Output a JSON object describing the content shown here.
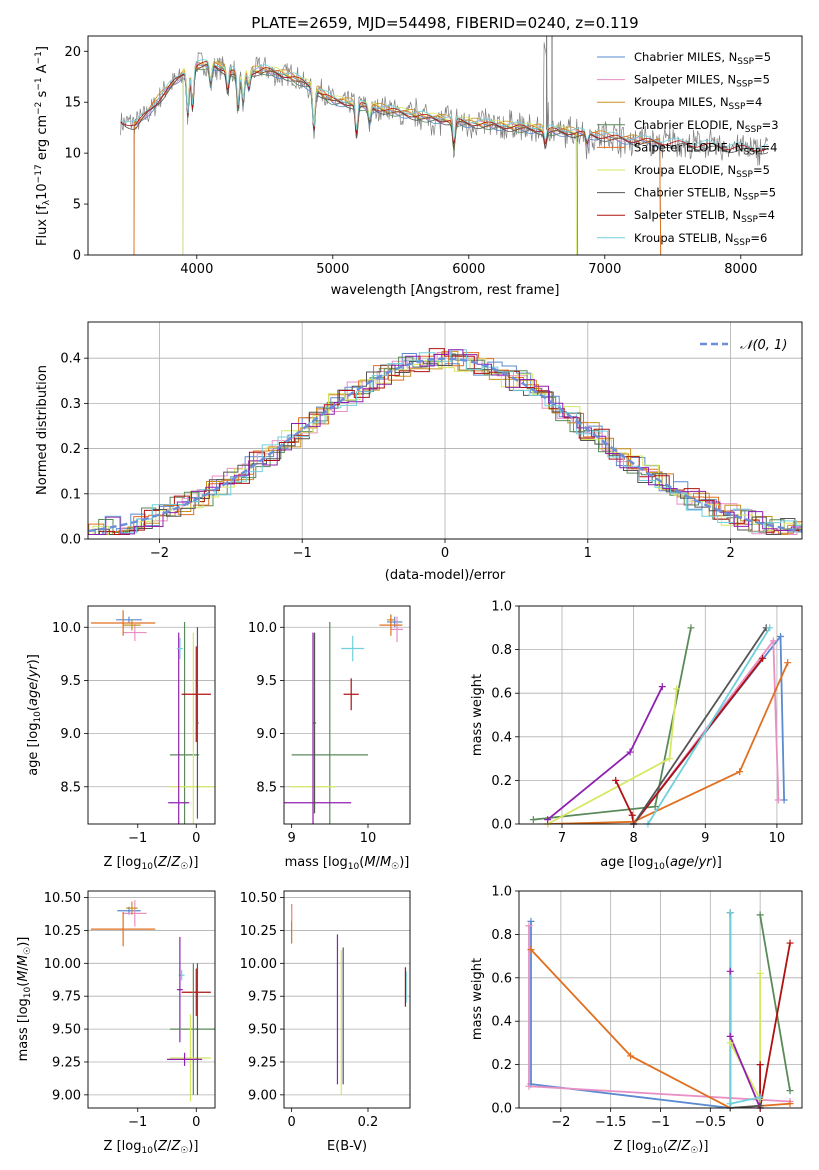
{
  "title": "PLATE=2659, MJD=54498, FIBERID=0240, z=0.119",
  "colors": {
    "Chabrier MILES": "#5a8ad0",
    "Salpeter MILES": "#e88fc4",
    "Kroupa MILES": "#c79020",
    "Chabrier ELODIE": "#5a8a5a",
    "Salpeter ELODIE": "#e07020",
    "Kroupa ELODIE": "#d6e860",
    "Chabrier STELIB": "#555555",
    "Salpeter STELIB": "#b01010",
    "Kroupa STELIB": "#70d0dc",
    "extra": "#9020b0",
    "data": "#808080"
  },
  "chart_data": [
    {
      "id": "spectrum",
      "type": "line",
      "title": "PLATE=2659, MJD=54498, FIBERID=0240, z=0.119",
      "xlabel": "wavelength [Angstrom, rest frame]",
      "ylabel": "Flux [fλ10⁻¹⁷ erg cm⁻² s⁻¹ A⁻¹]",
      "xlim": [
        3200,
        8450
      ],
      "ylim": [
        0,
        21.5
      ],
      "xticks": [
        4000,
        5000,
        6000,
        7000,
        8000
      ],
      "yticks": [
        0,
        5,
        10,
        15,
        20
      ],
      "legend_loc": "upper right",
      "continuum": [
        [
          3440,
          13.2
        ],
        [
          3550,
          12.7
        ],
        [
          3800,
          16.5
        ],
        [
          3950,
          18.5
        ],
        [
          4100,
          18.8
        ],
        [
          4300,
          17.8
        ],
        [
          4500,
          18.2
        ],
        [
          4700,
          17.5
        ],
        [
          4850,
          16.5
        ],
        [
          5000,
          15.2
        ],
        [
          5300,
          14.5
        ],
        [
          5700,
          13.5
        ],
        [
          6000,
          13.0
        ],
        [
          6400,
          12.5
        ],
        [
          6800,
          12.0
        ],
        [
          7200,
          11.3
        ],
        [
          7600,
          10.9
        ],
        [
          8000,
          10.5
        ],
        [
          8200,
          10.4
        ]
      ],
      "series": [
        {
          "name": "Chabrier MILES, N_SSP=5"
        },
        {
          "name": "Salpeter MILES, N_SSP=5"
        },
        {
          "name": "Kroupa MILES, N_SSP=4"
        },
        {
          "name": "Chabrier ELODIE, N_SSP=3"
        },
        {
          "name": "Salpeter ELODIE, N_SSP=4"
        },
        {
          "name": "Kroupa ELODIE, N_SSP=5"
        },
        {
          "name": "Chabrier STELIB, N_SSP=5"
        },
        {
          "name": "Salpeter STELIB, N_SSP=4"
        },
        {
          "name": "Kroupa STELIB, N_SSP=6"
        }
      ]
    },
    {
      "id": "residuals",
      "type": "histogram",
      "xlabel": "(data-model)/error",
      "ylabel": "Normed distribution",
      "xlim": [
        -2.5,
        2.5
      ],
      "ylim": [
        0,
        0.48
      ],
      "xticks": [
        -2,
        -1,
        0,
        1,
        2
      ],
      "yticks": [
        0.0,
        0.1,
        0.2,
        0.3,
        0.4
      ],
      "grid": true,
      "legend": "𝒩(0, 1)",
      "legend_loc": "upper right"
    },
    {
      "id": "age_vs_Z",
      "type": "errorbar",
      "xlabel": "Z [log10(Z/Z☉)]",
      "ylabel": "age [log10(age/yr)]",
      "xlim": [
        -1.85,
        0.32
      ],
      "ylim": [
        8.15,
        10.2
      ],
      "xticks": [
        -1,
        0
      ],
      "yticks": [
        8.5,
        9.0,
        9.5,
        10.0
      ],
      "points": [
        {
          "c": "#5a8ad0",
          "x": -1.15,
          "y": 10.07,
          "xe": 0.22,
          "ye": 0.03
        },
        {
          "c": "#e88fc4",
          "x": -1.05,
          "y": 9.95,
          "xe": 0.2,
          "ye": 0.08
        },
        {
          "c": "#c79020",
          "x": -1.1,
          "y": 10.02,
          "xe": 0.15,
          "ye": 0.05
        },
        {
          "c": "#e07020",
          "x": -1.25,
          "y": 10.04,
          "xe": 0.55,
          "ye": 0.12
        },
        {
          "c": "#5a8a5a",
          "x": -0.2,
          "y": 8.8,
          "xe": 0.25,
          "ye": 1.25
        },
        {
          "c": "#d6e860",
          "x": -0.05,
          "y": 8.5,
          "xe": 0.4,
          "ye": 1.45
        },
        {
          "c": "#9020b0",
          "x": -0.3,
          "y": 8.35,
          "xe": 0.18,
          "ye": 1.6
        },
        {
          "c": "#70d0dc",
          "x": -0.28,
          "y": 9.8,
          "xe": 0.05,
          "ye": 0.1
        },
        {
          "c": "#b01010",
          "x": 0.0,
          "y": 9.37,
          "xe": 0.25,
          "ye": 0.45
        },
        {
          "c": "#555555",
          "x": 0.02,
          "y": 9.1,
          "xe": 0.02,
          "ye": 0.9
        }
      ]
    },
    {
      "id": "age_vs_mass",
      "type": "errorbar",
      "xlabel": "mass [log10(M/M☉)]",
      "ylabel": "",
      "xlim": [
        8.9,
        10.55
      ],
      "ylim": [
        8.15,
        10.2
      ],
      "xticks": [
        9,
        10
      ],
      "yticks": [
        8.5,
        9.0,
        9.5,
        10.0
      ],
      "points": [
        {
          "c": "#5a8ad0",
          "x": 10.35,
          "y": 10.05,
          "xe": 0.1,
          "ye": 0.05
        },
        {
          "c": "#e88fc4",
          "x": 10.38,
          "y": 9.98,
          "xe": 0.08,
          "ye": 0.12
        },
        {
          "c": "#c79020",
          "x": 10.3,
          "y": 10.07,
          "xe": 0.05,
          "ye": 0.05
        },
        {
          "c": "#e07020",
          "x": 10.3,
          "y": 10.02,
          "xe": 0.15,
          "ye": 0.1
        },
        {
          "c": "#70d0dc",
          "x": 9.8,
          "y": 9.8,
          "xe": 0.15,
          "ye": 0.12
        },
        {
          "c": "#b01010",
          "x": 9.78,
          "y": 9.37,
          "xe": 0.1,
          "ye": 0.15
        },
        {
          "c": "#5a8a5a",
          "x": 9.5,
          "y": 8.8,
          "xe": 0.5,
          "ye": 1.25
        },
        {
          "c": "#d6e860",
          "x": 9.28,
          "y": 8.5,
          "xe": 0.3,
          "ye": 1.45
        },
        {
          "c": "#9020b0",
          "x": 9.28,
          "y": 8.35,
          "xe": 0.5,
          "ye": 1.6
        },
        {
          "c": "#555555",
          "x": 9.3,
          "y": 9.1,
          "xe": 0.02,
          "ye": 0.85
        }
      ]
    },
    {
      "id": "weight_vs_age",
      "type": "line",
      "xlabel": "age [log10(age/yr)]",
      "ylabel": "mass weight",
      "xlim": [
        6.4,
        10.35
      ],
      "ylim": [
        0,
        1.0
      ],
      "xticks": [
        7,
        8,
        9,
        10
      ],
      "yticks": [
        0.0,
        0.2,
        0.4,
        0.6,
        0.8,
        1.0
      ],
      "grid": true,
      "series": [
        {
          "c": "#5a8ad0",
          "pts": [
            [
              8.0,
              0.0
            ],
            [
              10.05,
              0.86
            ],
            [
              10.1,
              0.11
            ]
          ]
        },
        {
          "c": "#e88fc4",
          "pts": [
            [
              8.0,
              0.0
            ],
            [
              9.95,
              0.84
            ],
            [
              10.02,
              0.11
            ]
          ]
        },
        {
          "c": "#e07020",
          "pts": [
            [
              6.8,
              0.0
            ],
            [
              8.0,
              0.01
            ],
            [
              9.48,
              0.24
            ],
            [
              10.15,
              0.74
            ]
          ]
        },
        {
          "c": "#5a8a5a",
          "pts": [
            [
              6.6,
              0.02
            ],
            [
              8.3,
              0.08
            ],
            [
              8.8,
              0.9
            ]
          ]
        },
        {
          "c": "#d6e860",
          "pts": [
            [
              6.8,
              0.0
            ],
            [
              8.5,
              0.3
            ],
            [
              8.6,
              0.62
            ]
          ]
        },
        {
          "c": "#9020b0",
          "pts": [
            [
              6.8,
              0.02
            ],
            [
              7.95,
              0.33
            ],
            [
              8.4,
              0.63
            ]
          ]
        },
        {
          "c": "#b01010",
          "pts": [
            [
              7.75,
              0.2
            ],
            [
              7.98,
              0.04
            ],
            [
              8.0,
              0.0
            ],
            [
              9.8,
              0.76
            ]
          ]
        },
        {
          "c": "#555555",
          "pts": [
            [
              8.0,
              0.0
            ],
            [
              9.85,
              0.9
            ]
          ]
        },
        {
          "c": "#70d0dc",
          "pts": [
            [
              8.2,
              0.0
            ],
            [
              9.9,
              0.9
            ]
          ]
        }
      ]
    },
    {
      "id": "mass_vs_Z",
      "type": "errorbar",
      "xlabel": "Z [log10(Z/Z☉)]",
      "ylabel": "mass [log10(M/M☉)]",
      "xlim": [
        -1.85,
        0.32
      ],
      "ylim": [
        8.9,
        10.55
      ],
      "xticks": [
        -1,
        0
      ],
      "yticks": [
        9.0,
        9.25,
        9.5,
        9.75,
        10.0,
        10.25,
        10.5
      ],
      "points": [
        {
          "c": "#5a8ad0",
          "x": -1.15,
          "y": 10.4,
          "xe": 0.2,
          "ye": 0.03
        },
        {
          "c": "#e88fc4",
          "x": -1.05,
          "y": 10.38,
          "xe": 0.2,
          "ye": 0.1
        },
        {
          "c": "#c79020",
          "x": -1.1,
          "y": 10.42,
          "xe": 0.1,
          "ye": 0.05
        },
        {
          "c": "#e07020",
          "x": -1.25,
          "y": 10.26,
          "xe": 0.55,
          "ye": 0.13
        },
        {
          "c": "#70d0dc",
          "x": -0.25,
          "y": 9.91,
          "xe": 0.05,
          "ye": 0.04
        },
        {
          "c": "#9020b0",
          "x": -0.28,
          "y": 9.8,
          "xe": 0.05,
          "ye": 0.4
        },
        {
          "c": "#b01010",
          "x": 0.0,
          "y": 9.78,
          "xe": 0.25,
          "ye": 0.18
        },
        {
          "c": "#5a8a5a",
          "x": -0.05,
          "y": 9.5,
          "xe": 0.4,
          "ye": 0.5
        },
        {
          "c": "#d6e860",
          "x": -0.1,
          "y": 9.28,
          "xe": 0.35,
          "ye": 0.33
        },
        {
          "c": "#9020b0",
          "x": -0.2,
          "y": 9.27,
          "xe": 0.3,
          "ye": 0.05
        },
        {
          "c": "#555555",
          "x": 0.02,
          "y": 9.5,
          "xe": 0.02,
          "ye": 0.5
        }
      ]
    },
    {
      "id": "mass_vs_ebv",
      "type": "errorbar",
      "xlabel": "E(B-V)",
      "ylabel": "",
      "xlim": [
        -0.02,
        0.31
      ],
      "ylim": [
        8.9,
        10.55
      ],
      "xticks": [
        0.0,
        0.2
      ],
      "yticks": [
        9.0,
        9.25,
        9.5,
        9.75,
        10.0,
        10.25,
        10.5
      ],
      "points": [
        {
          "c": "#e07020",
          "x": 0.0,
          "y": 10.3,
          "xe": 0.0,
          "ye": 0.15
        },
        {
          "c": "#e88fc4",
          "x": 0.0,
          "y": 10.38,
          "xe": 0.0,
          "ye": 0.06
        },
        {
          "c": "#9020b0",
          "x": 0.12,
          "y": 9.65,
          "xe": 0.0,
          "ye": 0.57
        },
        {
          "c": "#d6e860",
          "x": 0.13,
          "y": 9.55,
          "xe": 0.0,
          "ye": 0.55
        },
        {
          "c": "#555555",
          "x": 0.135,
          "y": 9.6,
          "xe": 0.0,
          "ye": 0.52
        },
        {
          "c": "#70d0dc",
          "x": 0.3,
          "y": 9.82,
          "xe": 0.0,
          "ye": 0.12
        },
        {
          "c": "#b01010",
          "x": 0.298,
          "y": 9.82,
          "xe": 0.0,
          "ye": 0.15
        }
      ]
    },
    {
      "id": "weight_vs_Z",
      "type": "line",
      "xlabel": "Z [log10(Z/Z☉)]",
      "ylabel": "mass weight",
      "xlim": [
        -2.42,
        0.42
      ],
      "ylim": [
        0,
        1.0
      ],
      "xticks": [
        -2.0,
        -1.5,
        -1.0,
        -0.5,
        0.0
      ],
      "yticks": [
        0.0,
        0.2,
        0.4,
        0.6,
        0.8,
        1.0
      ],
      "grid": true,
      "series": [
        {
          "c": "#5a8ad0",
          "pts": [
            [
              -2.3,
              0.86
            ],
            [
              -2.3,
              0.11
            ],
            [
              -0.3,
              0.0
            ]
          ]
        },
        {
          "c": "#e88fc4",
          "pts": [
            [
              -2.32,
              0.84
            ],
            [
              -2.32,
              0.1
            ],
            [
              0.3,
              0.03
            ]
          ]
        },
        {
          "c": "#e07020",
          "pts": [
            [
              -2.3,
              0.73
            ],
            [
              -1.3,
              0.24
            ],
            [
              -0.3,
              0.0
            ],
            [
              0.3,
              0.02
            ]
          ]
        },
        {
          "c": "#5a8a5a",
          "pts": [
            [
              0.0,
              0.89
            ],
            [
              0.3,
              0.08
            ]
          ]
        },
        {
          "c": "#d6e860",
          "pts": [
            [
              -0.3,
              0.3
            ],
            [
              0.0,
              0.04
            ],
            [
              0.0,
              0.62
            ]
          ]
        },
        {
          "c": "#9020b0",
          "pts": [
            [
              -0.3,
              0.63
            ],
            [
              -0.3,
              0.33
            ],
            [
              0.0,
              0.0
            ]
          ]
        },
        {
          "c": "#b01010",
          "pts": [
            [
              0.0,
              0.2
            ],
            [
              0.0,
              0.0
            ],
            [
              0.3,
              0.76
            ]
          ]
        },
        {
          "c": "#555555",
          "pts": [
            [
              -0.3,
              0.9
            ],
            [
              -0.3,
              0.0
            ],
            [
              0.0,
              0.01
            ]
          ]
        },
        {
          "c": "#70d0dc",
          "pts": [
            [
              -0.3,
              0.9
            ],
            [
              -0.3,
              0.02
            ],
            [
              0.0,
              0.05
            ]
          ]
        }
      ]
    }
  ]
}
